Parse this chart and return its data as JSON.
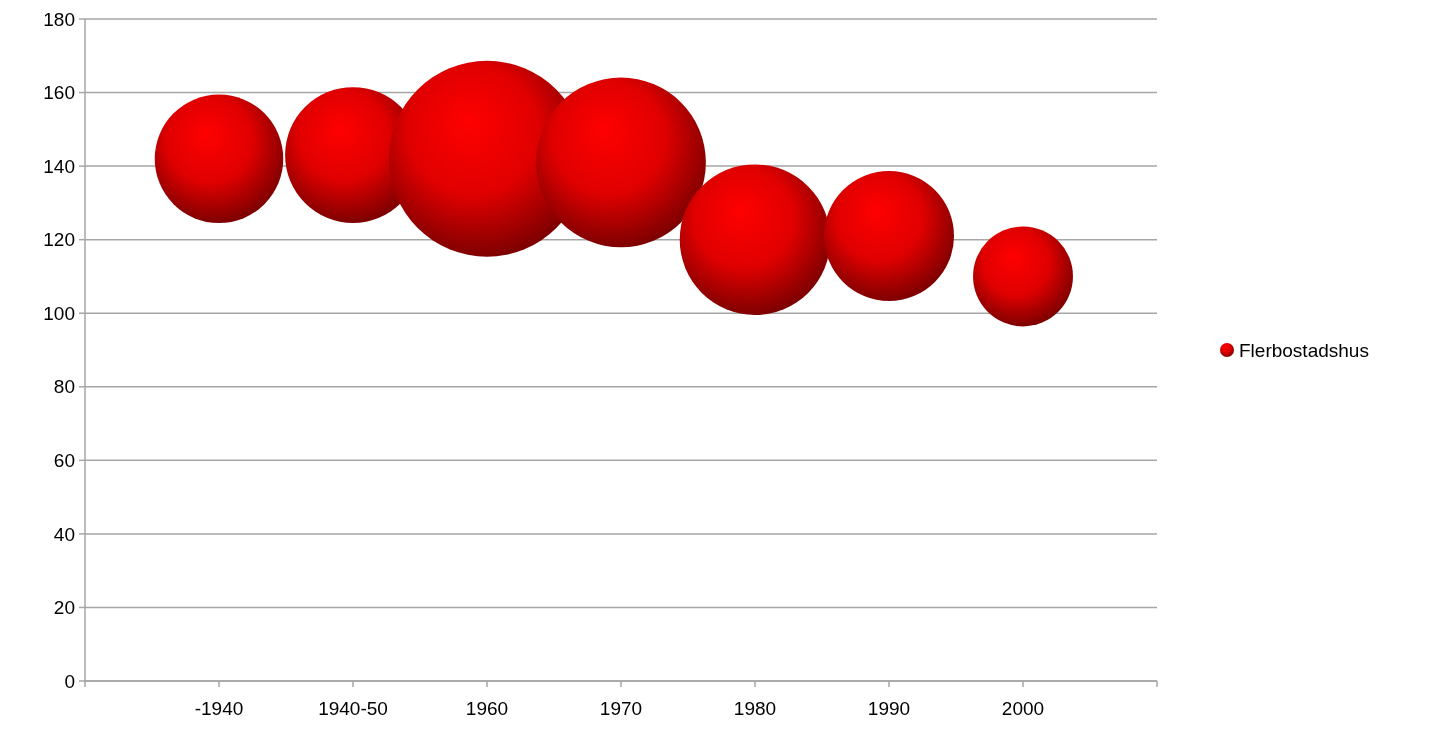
{
  "chart_data": {
    "type": "bubble",
    "categories": [
      "-1940",
      "1940-50",
      "1960",
      "1970",
      "1980",
      "1990",
      "2000",
      null
    ],
    "series": [
      {
        "name": "Flerbostadshus",
        "color": "#e00000",
        "values": [
          142,
          143,
          142,
          141,
          120,
          121,
          110,
          null
        ],
        "sizes": [
          0.43,
          0.48,
          1,
          0.75,
          0.59,
          0.44,
          0.26,
          null
        ]
      }
    ],
    "ylim": [
      0,
      180
    ],
    "yticks": [
      0,
      20,
      40,
      60,
      80,
      100,
      120,
      140,
      160,
      180
    ],
    "grid": "y",
    "legend": "right",
    "marker": "circle"
  }
}
